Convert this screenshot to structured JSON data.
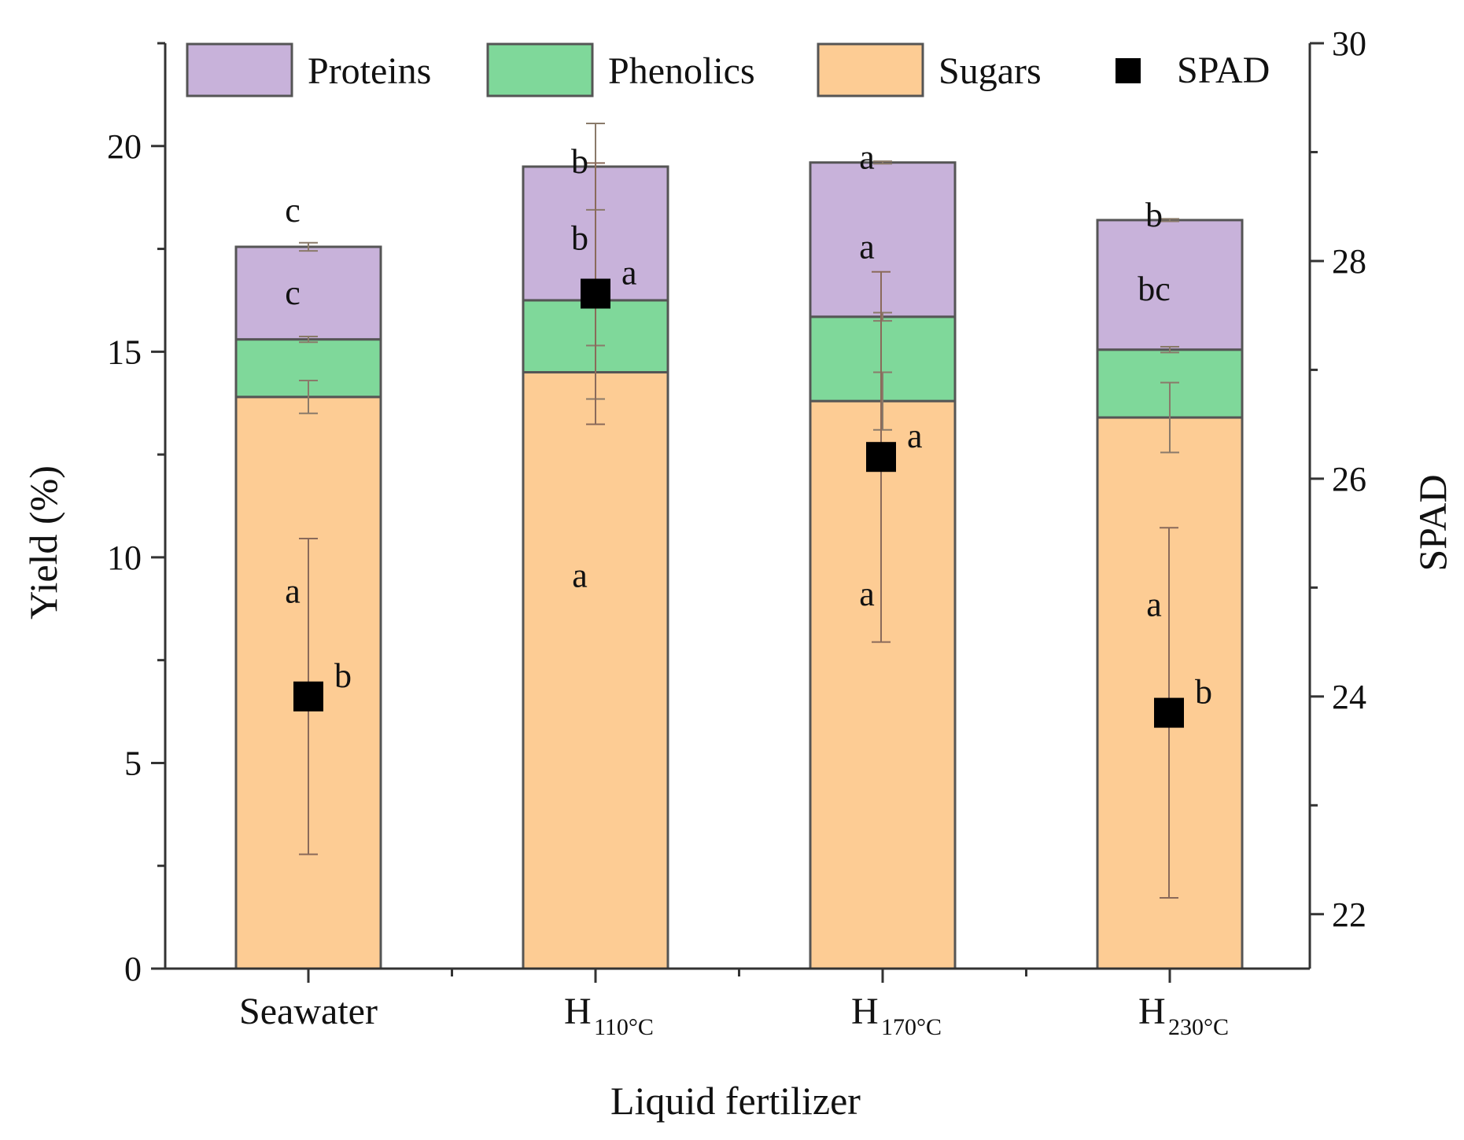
{
  "chart_data": {
    "type": "bar",
    "stacked": true,
    "xlabel": "Liquid fertilizer",
    "ylabel": "Yield (%)",
    "y2label": "SPAD",
    "ylim": [
      0,
      22.5
    ],
    "y2lim": [
      21.5,
      30
    ],
    "yticks": [
      0,
      5,
      10,
      15,
      20
    ],
    "y2ticks": [
      22,
      24,
      26,
      28,
      30
    ],
    "legend_position": "top",
    "categories": [
      {
        "main": "Seawater",
        "sub": ""
      },
      {
        "main": "H",
        "sub": "110°C"
      },
      {
        "main": "H",
        "sub": "170°C"
      },
      {
        "main": "H",
        "sub": "230°C"
      }
    ],
    "series": [
      {
        "name": "Sugars",
        "color": "#FDCC94",
        "values": [
          13.9,
          14.5,
          13.8,
          13.4
        ],
        "errors": [
          0.4,
          0.65,
          0.7,
          0.85
        ],
        "letters": [
          "a",
          "a",
          "a",
          "a"
        ]
      },
      {
        "name": "Phenolics",
        "color": "#7FD89A",
        "values": [
          1.4,
          1.75,
          2.05,
          1.65
        ],
        "errors": [
          0.07,
          0.05,
          0.1,
          0.07
        ],
        "letters": [
          "c",
          "b",
          "a",
          "bc"
        ]
      },
      {
        "name": "Proteins",
        "color": "#C8B2DA",
        "values": [
          2.25,
          3.25,
          3.75,
          3.15
        ],
        "errors": [
          0.1,
          1.05,
          0.03,
          0.03
        ],
        "letters": [
          "c",
          "b",
          "a",
          "b"
        ]
      }
    ],
    "spad": {
      "name": "SPAD",
      "color": "#000000",
      "values": [
        24.0,
        27.7,
        26.2,
        23.85
      ],
      "errors": [
        1.45,
        1.2,
        1.7,
        1.7
      ],
      "letters": [
        "b",
        "a",
        "a",
        "b"
      ]
    },
    "legend_order": [
      "Proteins",
      "Phenolics",
      "Sugars",
      "SPAD"
    ]
  }
}
